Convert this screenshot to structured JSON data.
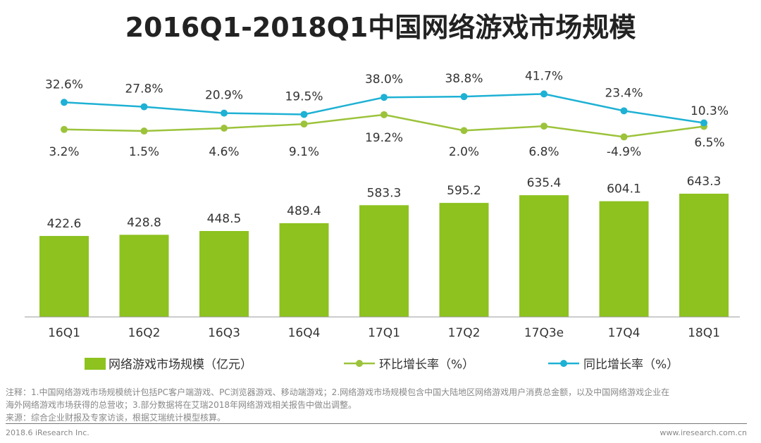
{
  "chart_data": {
    "type": "bar",
    "title": "2016Q1-2018Q1中国网络游戏市场规模",
    "categories": [
      "16Q1",
      "16Q2",
      "16Q3",
      "16Q4",
      "17Q1",
      "17Q2",
      "17Q3e",
      "17Q4",
      "18Q1"
    ],
    "series": [
      {
        "name": "网络游戏市场规模（亿元）",
        "type": "bar",
        "color": "#8dc21f",
        "values": [
          422.6,
          428.8,
          448.5,
          489.4,
          583.3,
          595.2,
          635.4,
          604.1,
          643.3
        ],
        "labels": [
          "422.6",
          "428.8",
          "448.5",
          "489.4",
          "583.3",
          "595.2",
          "635.4",
          "604.1",
          "643.3"
        ]
      },
      {
        "name": "环比增长率（%）",
        "type": "line",
        "color": "#9cc33b",
        "values": [
          3.2,
          1.5,
          4.6,
          9.1,
          19.2,
          2.0,
          6.8,
          -4.9,
          6.5
        ],
        "labels": [
          "3.2%",
          "1.5%",
          "4.6%",
          "9.1%",
          "19.2%",
          "2.0%",
          "6.8%",
          "-4.9%",
          "6.5%"
        ]
      },
      {
        "name": "同比增长率（%）",
        "type": "line",
        "color": "#1eb1d4",
        "values": [
          32.6,
          27.8,
          20.9,
          19.5,
          38.0,
          38.8,
          41.7,
          23.4,
          10.3
        ],
        "labels": [
          "32.6%",
          "27.8%",
          "20.9%",
          "19.5%",
          "38.0%",
          "38.8%",
          "41.7%",
          "23.4%",
          "10.3%"
        ]
      }
    ],
    "legend": "bottom",
    "grid": false
  },
  "notes": {
    "line1": "注释：1.中国网络游戏市场规模统计包括PC客户端游戏、PC浏览器游戏、移动端游戏；2.网络游戏市场规模包含中国大陆地区网络游戏用户消费总金额，以及中国网络游戏企业在",
    "line2": "海外网络游戏市场获得的总营收；3.部分数据将在艾瑞2018年网络游戏相关报告中做出调整。",
    "line3": "来源：综合企业财报及专家访谈，根据艾瑞统计模型核算。",
    "copyright": "2018.6 iResearch Inc.",
    "website": "www.iresearch.com.cn"
  }
}
